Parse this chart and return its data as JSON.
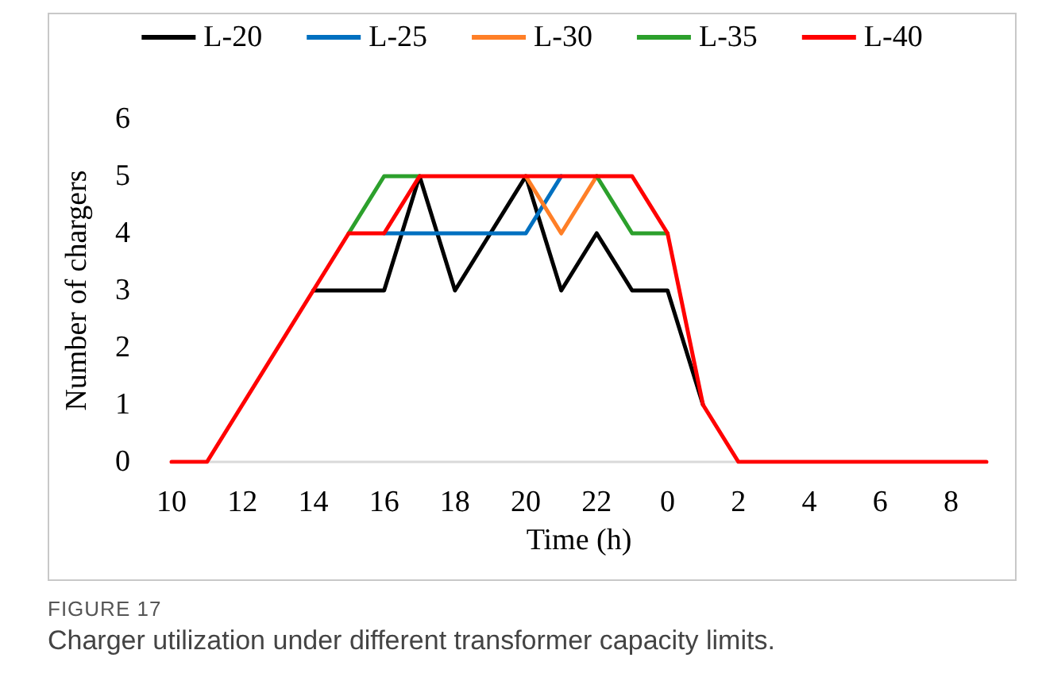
{
  "chart_data": {
    "type": "line",
    "xlabel": "Time (h)",
    "ylabel": "Number of chargers",
    "categories": [
      "10",
      null,
      "12",
      null,
      "14",
      null,
      "16",
      null,
      "18",
      null,
      "20",
      null,
      "22",
      null,
      "0",
      null,
      "2",
      null,
      "4",
      null,
      "6",
      null,
      "8",
      null
    ],
    "series": [
      {
        "name": "L-20",
        "color": "#000000",
        "values": [
          null,
          null,
          null,
          null,
          3,
          3,
          3,
          5,
          3,
          4,
          5,
          3,
          4,
          3,
          3,
          1,
          null,
          null,
          null,
          null,
          null,
          null,
          null,
          null
        ]
      },
      {
        "name": "L-25",
        "color": "#0070c0",
        "values": [
          null,
          null,
          null,
          null,
          null,
          null,
          4,
          4,
          4,
          4,
          4,
          5,
          null,
          null,
          null,
          null,
          null,
          null,
          null,
          null,
          null,
          null,
          null,
          null
        ]
      },
      {
        "name": "L-30",
        "color": "#ff7f27",
        "values": [
          null,
          null,
          null,
          null,
          null,
          null,
          null,
          null,
          null,
          null,
          5,
          4,
          5,
          null,
          null,
          null,
          null,
          null,
          null,
          null,
          null,
          null,
          null,
          null
        ]
      },
      {
        "name": "L-35",
        "color": "#2ca02c",
        "values": [
          null,
          null,
          null,
          null,
          null,
          4,
          5,
          5,
          null,
          null,
          null,
          null,
          5,
          4,
          4,
          null,
          null,
          null,
          null,
          null,
          null,
          null,
          null,
          null
        ]
      },
      {
        "name": "L-40",
        "color": "#ff0000",
        "values": [
          0,
          0,
          1,
          2,
          3,
          4,
          4,
          5,
          5,
          5,
          5,
          5,
          5,
          5,
          4,
          1,
          0,
          0,
          0,
          0,
          0,
          0,
          0,
          0
        ]
      }
    ],
    "ylim": [
      0,
      6
    ],
    "yticks": [
      0,
      1,
      2,
      3,
      4,
      5,
      6
    ],
    "grid": false,
    "legend": "top",
    "marker": "none",
    "line_style": "solid",
    "annotations": [
      "FIGURE 17",
      "Charger utilization under different transformer capacity limits."
    ]
  }
}
